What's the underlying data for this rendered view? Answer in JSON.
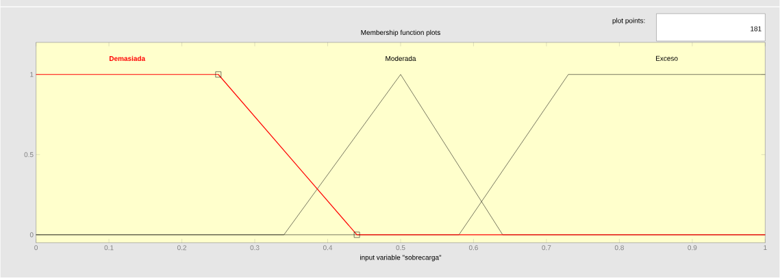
{
  "chart_data": {
    "type": "line",
    "title": "Membership function plots",
    "xlabel": "input variable \"sobrecarga\"",
    "xlim": [
      0,
      1
    ],
    "ylim": [
      -0.05,
      1.2
    ],
    "xticks": [
      0,
      0.1,
      0.2,
      0.3,
      0.4,
      0.5,
      0.6,
      0.7,
      0.8,
      0.9,
      1
    ],
    "yticks": [
      0,
      0.5,
      1
    ],
    "series": [
      {
        "name": "Demasiada",
        "color": "#ff0000",
        "x": [
          0,
          0.25,
          0.44,
          1
        ],
        "values": [
          1,
          1,
          0,
          0
        ]
      },
      {
        "name": "Moderada",
        "color": "#000000",
        "x": [
          0,
          0.34,
          0.5,
          0.64,
          1
        ],
        "values": [
          0,
          0,
          1,
          0,
          0
        ]
      },
      {
        "name": "Exceso",
        "color": "#000000",
        "x": [
          0,
          0.58,
          0.73,
          1
        ],
        "values": [
          0,
          0,
          1,
          1
        ]
      },
      {
        "type": "scatter",
        "marker": "square",
        "color": "#000000",
        "x": [
          0.25,
          0.44
        ],
        "values": [
          1,
          0
        ]
      }
    ],
    "annotations": [
      "plot points:",
      "181"
    ]
  }
}
